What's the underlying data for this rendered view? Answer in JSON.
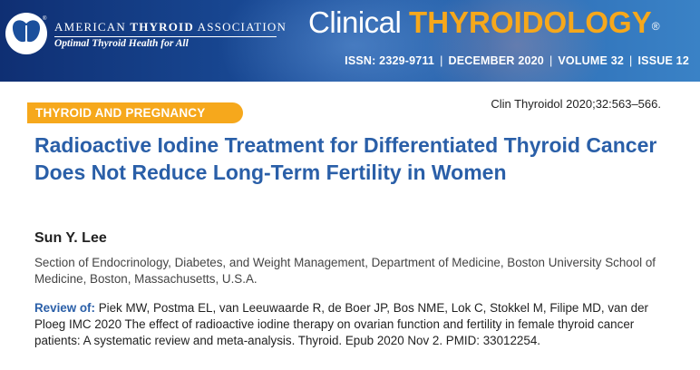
{
  "header": {
    "association_prefix": "American ",
    "association_bold": "Thyroid",
    "association_suffix": " Association",
    "tagline": "Optimal Thyroid Health for All",
    "journal_part1": "Clinical ",
    "journal_part2": "THYROIDOLOGY",
    "registered_mark": "®",
    "issn": "ISSN: 2329-9711",
    "date": "DECEMBER 2020",
    "volume": "VOLUME 32",
    "issue": "ISSUE 12",
    "separator": "|"
  },
  "article": {
    "category": "THYROID AND PREGNANCY",
    "citation": "Clin Thyroidol 2020;32:563–566.",
    "title": "Radioactive Iodine Treatment for Differentiated Thyroid Cancer Does Not Reduce Long-Term Fertility in Women",
    "author": "Sun Y. Lee",
    "affiliation": "Section of Endocrinology, Diabetes, and Weight Management, Department of Medicine, Boston University School of Medicine, Boston, Massachusetts, U.S.A.",
    "review_label": "Review of:",
    "review_text": "Piek MW, Postma EL, van Leeuwaarde R, de Boer JP, Bos NME, Lok C, Stokkel M, Filipe MD, van der Ploeg IMC 2020 The effect of radioactive iodine therapy on ovarian function and fertility in female thyroid cancer patients: A systematic review and meta-analysis. Thyroid. Epub 2020 Nov 2. PMID: 33012254."
  },
  "colors": {
    "banner_dark": "#0f2f73",
    "banner_light": "#3a82c6",
    "accent_orange": "#f6a81c",
    "title_blue": "#2a5fa8"
  },
  "icons": {
    "logo": "thyroid-butterfly-logo-icon"
  }
}
